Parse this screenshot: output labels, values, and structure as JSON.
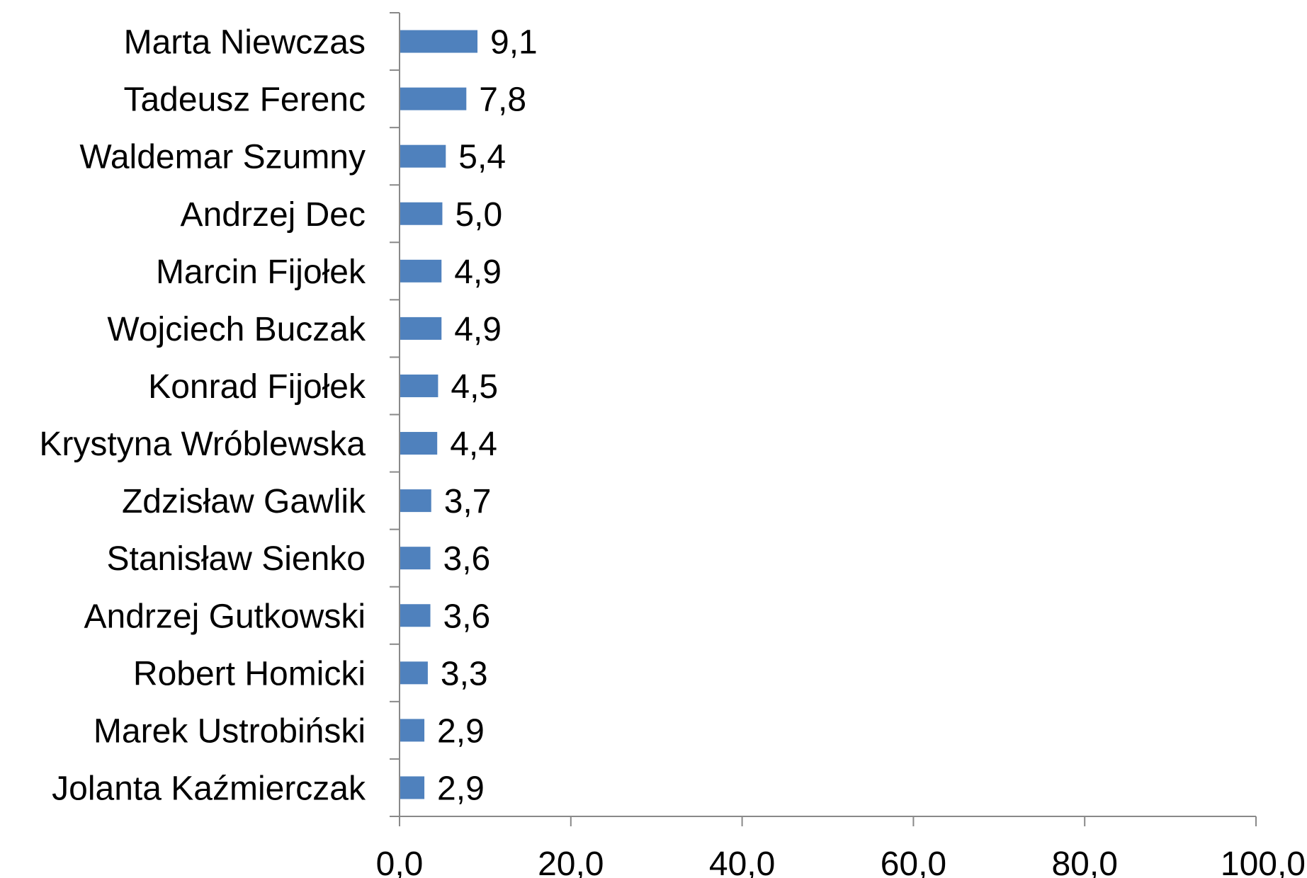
{
  "chart_data": {
    "type": "bar",
    "orientation": "horizontal",
    "categories": [
      "Marta Niewczas",
      "Tadeusz Ferenc",
      "Waldemar Szumny",
      "Andrzej Dec",
      "Marcin Fijołek",
      "Wojciech Buczak",
      "Konrad Fijołek",
      "Krystyna Wróblewska",
      "Zdzisław Gawlik",
      "Stanisław Sienko",
      "Andrzej Gutkowski",
      "Robert Homicki",
      "Marek Ustrobiński",
      "Jolanta Kaźmierczak"
    ],
    "values": [
      9.1,
      7.8,
      5.4,
      5.0,
      4.9,
      4.9,
      4.5,
      4.4,
      3.7,
      3.6,
      3.6,
      3.3,
      2.9,
      2.9
    ],
    "data_labels": [
      "9,1",
      "7,8",
      "5,4",
      "5,0",
      "4,9",
      "4,9",
      "4,5",
      "4,4",
      "3,7",
      "3,6",
      "3,6",
      "3,3",
      "2,9",
      "2,9"
    ],
    "x_ticks": [
      0,
      20,
      40,
      60,
      80,
      100
    ],
    "x_tick_labels": [
      "0,0",
      "20,0",
      "40,0",
      "60,0",
      "80,0",
      "100,0"
    ],
    "xlim": [
      0,
      100
    ],
    "grid": false,
    "legend": "none",
    "bar_color": "#4f81bd",
    "axis_color": "#898989"
  }
}
